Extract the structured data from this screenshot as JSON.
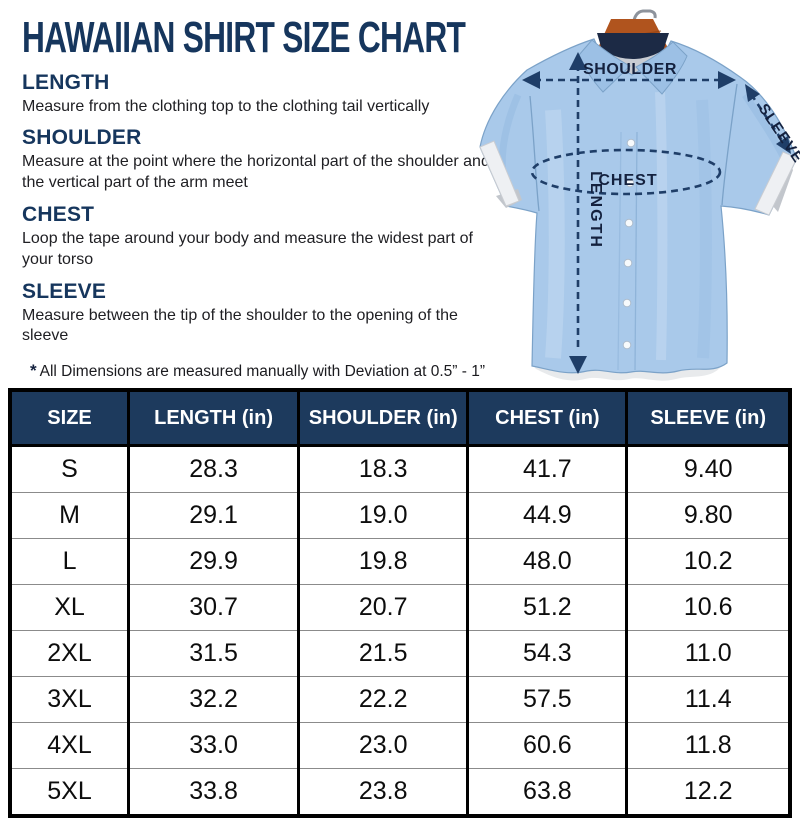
{
  "page": {
    "title": "HAWAIIAN SHIRT SIZE CHART"
  },
  "definitions": [
    {
      "term": "LENGTH",
      "description": "Measure from the clothing top to the clothing tail vertically"
    },
    {
      "term": "SHOULDER",
      "description": "Measure at the point where the horizontal part of the shoulder and the vertical part of the arm meet"
    },
    {
      "term": "CHEST",
      "description": "Loop the tape around your body and measure the widest part of your torso"
    },
    {
      "term": "SLEEVE",
      "description": "Measure between the tip of the shoulder to the opening of the sleeve"
    }
  ],
  "note": {
    "marker": "*",
    "text": "All Dimensions are measured manually with Deviation at 0.5” - 1”"
  },
  "illustration": {
    "labels": {
      "shoulder": "SHOULDER",
      "sleeve": "SLEEVE",
      "chest": "CHEST",
      "length": "LENGTH"
    }
  },
  "colors": {
    "heading_navy": "#16365d",
    "table_header_bg": "#1d3a5d",
    "annotation_navy": "#1f3e68",
    "label_dark": "#14213e",
    "shirt_blue": "#a9c9ea",
    "hanger_brown": "#b0541e"
  },
  "chart_data": {
    "type": "table",
    "title": "HAWAIIAN SHIRT SIZE CHART",
    "columns": [
      "SIZE",
      "LENGTH (in)",
      "SHOULDER (in)",
      "CHEST (in)",
      "SLEEVE (in)"
    ],
    "rows": [
      [
        "S",
        "28.3",
        "18.3",
        "41.7",
        "9.40"
      ],
      [
        "M",
        "29.1",
        "19.0",
        "44.9",
        "9.80"
      ],
      [
        "L",
        "29.9",
        "19.8",
        "48.0",
        "10.2"
      ],
      [
        "XL",
        "30.7",
        "20.7",
        "51.2",
        "10.6"
      ],
      [
        "2XL",
        "31.5",
        "21.5",
        "54.3",
        "11.0"
      ],
      [
        "3XL",
        "32.2",
        "22.2",
        "57.5",
        "11.4"
      ],
      [
        "4XL",
        "33.0",
        "23.0",
        "60.6",
        "11.8"
      ],
      [
        "5XL",
        "33.8",
        "23.8",
        "63.8",
        "12.2"
      ]
    ]
  }
}
